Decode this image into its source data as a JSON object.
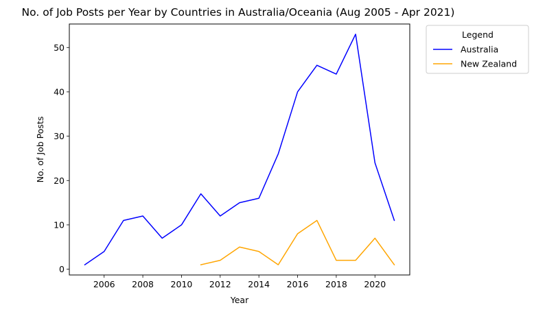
{
  "chart_data": {
    "type": "line",
    "title": "No. of Job Posts per Year by Countries in Australia/Oceania (Aug 2005 - Apr 2021)",
    "xlabel": "Year",
    "ylabel": "No. of Job Posts",
    "xlim": [
      2004.2,
      2021.8
    ],
    "ylim": [
      -1.3,
      55.3
    ],
    "xticks": [
      2006,
      2008,
      2010,
      2012,
      2014,
      2016,
      2018,
      2020
    ],
    "xtick_labels": [
      "2006",
      "2008",
      "2010",
      "2012",
      "2014",
      "2016",
      "2018",
      "2020"
    ],
    "yticks": [
      0,
      10,
      20,
      30,
      40,
      50
    ],
    "ytick_labels": [
      "0",
      "10",
      "20",
      "30",
      "40",
      "50"
    ],
    "grid": false,
    "legend": {
      "title": "Legend",
      "position": "outside-top-right"
    },
    "series": [
      {
        "name": "Australia",
        "color": "#0000ff",
        "x": [
          2005,
          2006,
          2007,
          2008,
          2009,
          2010,
          2011,
          2012,
          2013,
          2014,
          2015,
          2016,
          2017,
          2018,
          2019,
          2020,
          2021
        ],
        "values": [
          1,
          4,
          11,
          12,
          7,
          10,
          17,
          12,
          15,
          16,
          26,
          40,
          46,
          44,
          53,
          24,
          11
        ]
      },
      {
        "name": "New Zealand",
        "color": "#ffa500",
        "x": [
          2011,
          2012,
          2013,
          2014,
          2015,
          2016,
          2017,
          2018,
          2019,
          2020,
          2021
        ],
        "values": [
          1,
          2,
          5,
          4,
          1,
          8,
          11,
          2,
          2,
          7,
          1
        ]
      }
    ]
  }
}
